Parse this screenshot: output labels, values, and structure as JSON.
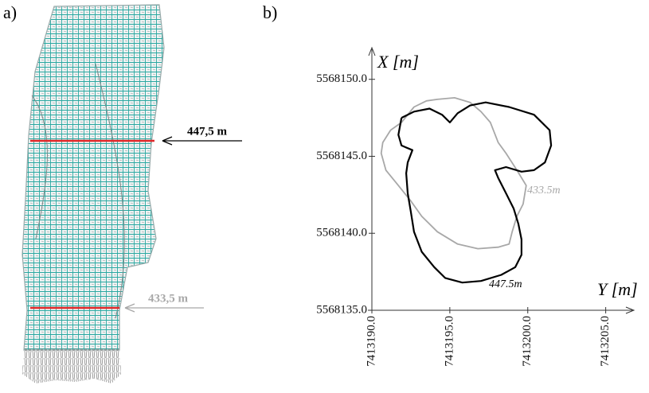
{
  "panel_a": {
    "label": "a)",
    "annotations": [
      "447,5 m",
      "433,5 m"
    ]
  },
  "chart_data": {
    "type": "line",
    "label": "b)",
    "xlabel": "Y [m]",
    "ylabel": "X [m]",
    "xlim": [
      7413190,
      7413206.5
    ],
    "ylim": [
      5568135,
      5568152
    ],
    "xticks": [
      {
        "value": 7413190,
        "label": "7413190.0"
      },
      {
        "value": 7413195,
        "label": "7413195.0"
      },
      {
        "value": 7413200,
        "label": "7413200.0"
      },
      {
        "value": 7413205,
        "label": "7413205.0"
      }
    ],
    "yticks": [
      {
        "value": 5568135,
        "label": "5568135.0"
      },
      {
        "value": 5568140,
        "label": "5568140.0"
      },
      {
        "value": 5568145,
        "label": "5568145.0"
      },
      {
        "value": 5568150,
        "label": "5568150.0"
      }
    ],
    "series": [
      {
        "name": "433.5m",
        "color": "#a8a8a8",
        "x": [
          7413191.2,
          7413191.9,
          7413192.7,
          7413193.5,
          7413194.2,
          7413195.3,
          7413196.3,
          7413197.0,
          7413197.6,
          7413198.1,
          7413198.6,
          7413199.3,
          7413199.9,
          7413199.7,
          7413199.3,
          7413199.0,
          7413198.8,
          7413198.1,
          7413196.8,
          7413195.5,
          7413194.2,
          7413193.2,
          7413192.5,
          7413191.7,
          7413190.9,
          7413190.6,
          7413190.7,
          7413191.2
        ],
        "values": [
          5568146.7,
          5568147.2,
          5568148.2,
          5568148.6,
          5568148.7,
          5568148.8,
          5568148.5,
          5568147.9,
          5568147.2,
          5568145.9,
          5568145.2,
          5568144.1,
          5568143.1,
          5568141.9,
          5568141.1,
          5568140.1,
          5568139.3,
          5568139.1,
          5568139.0,
          5568139.3,
          5568140.1,
          5568141.1,
          5568142.1,
          5568143.1,
          5568144.1,
          5568145.2,
          5568145.9,
          5568146.7
        ]
      },
      {
        "name": "447.5m",
        "color": "#000000",
        "x": [
          7413191.9,
          7413192.7,
          7413193.7,
          7413194.5,
          7413195.0,
          7413195.5,
          7413196.3,
          7413197.3,
          7413198.8,
          7413200.4,
          7413201.4,
          7413201.5,
          7413201.1,
          7413200.4,
          7413199.6,
          7413198.6,
          7413197.9,
          7413198.1,
          7413198.6,
          7413199.1,
          7413199.4,
          7413199.6,
          7413199.6,
          7413199.2,
          7413198.3,
          7413197.0,
          7413195.8,
          7413194.7,
          7413194.0,
          7413193.2,
          7413192.7,
          7413192.5,
          7413192.3,
          7413192.2,
          7413192.3,
          7413192.6,
          7413191.9,
          7413191.7,
          7413191.9
        ],
        "values": [
          5568147.5,
          5568147.9,
          5568148.1,
          5568147.7,
          5568147.2,
          5568147.8,
          5568148.3,
          5568148.5,
          5568148.2,
          5568147.7,
          5568146.7,
          5568145.7,
          5568144.6,
          5568144.1,
          5568144.0,
          5568144.3,
          5568144.1,
          5568143.6,
          5568142.6,
          5568141.6,
          5568140.6,
          5568139.6,
          5568138.6,
          5568137.8,
          5568137.3,
          5568136.9,
          5568136.8,
          5568137.1,
          5568137.8,
          5568138.8,
          5568140.1,
          5568141.4,
          5568142.6,
          5568143.9,
          5568144.6,
          5568145.4,
          5568145.7,
          5568146.4,
          5568147.5
        ]
      }
    ]
  }
}
